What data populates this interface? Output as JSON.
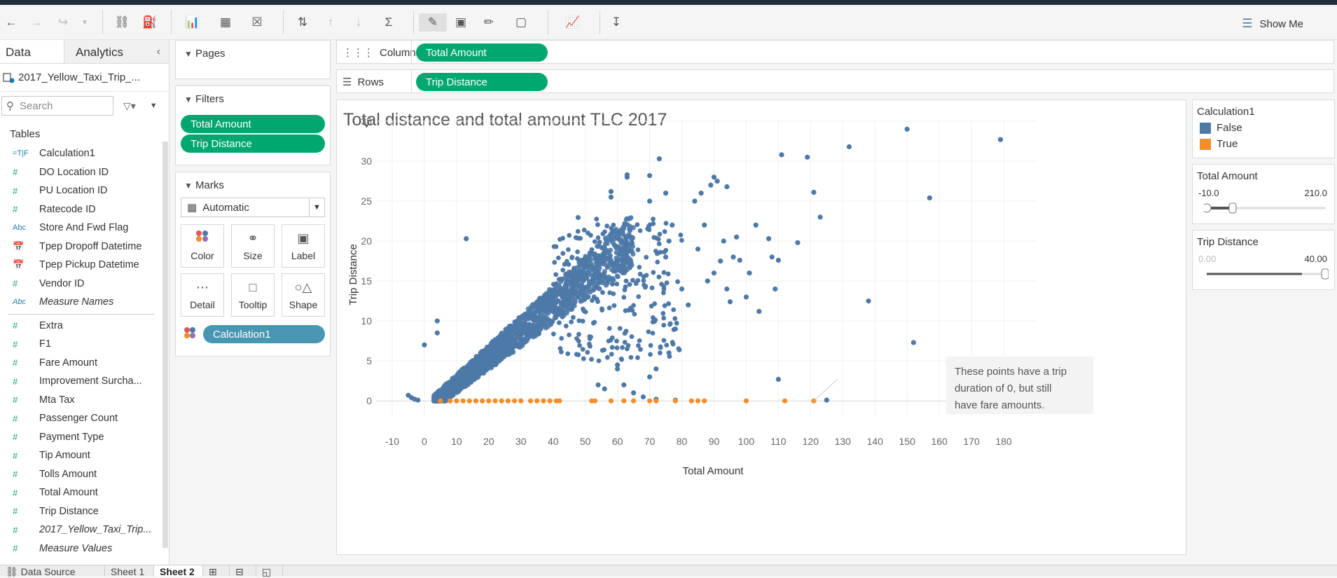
{
  "toolbar": {
    "show_me": "Show Me"
  },
  "data_pane": {
    "tabs": [
      "Data",
      "Analytics"
    ],
    "datasource": "2017_Yellow_Taxi_Trip_...",
    "search_placeholder": "Search",
    "tables_label": "Tables",
    "dimensions": [
      {
        "type": "=T|F",
        "name": "Calculation1"
      },
      {
        "type": "#",
        "name": "DO Location ID"
      },
      {
        "type": "#",
        "name": "PU Location ID"
      },
      {
        "type": "#",
        "name": "Ratecode ID"
      },
      {
        "type": "Abc",
        "name": "Store And Fwd Flag"
      },
      {
        "type": "date",
        "name": "Tpep Dropoff Datetime"
      },
      {
        "type": "date",
        "name": "Tpep Pickup Datetime"
      },
      {
        "type": "#",
        "name": "Vendor ID"
      },
      {
        "type": "Abc",
        "name": "Measure Names",
        "italic": true
      }
    ],
    "measures": [
      {
        "type": "#",
        "name": "Extra"
      },
      {
        "type": "#",
        "name": "F1"
      },
      {
        "type": "#",
        "name": "Fare Amount"
      },
      {
        "type": "#",
        "name": "Improvement Surcha..."
      },
      {
        "type": "#",
        "name": "Mta Tax"
      },
      {
        "type": "#",
        "name": "Passenger Count"
      },
      {
        "type": "#",
        "name": "Payment Type"
      },
      {
        "type": "#",
        "name": "Tip Amount"
      },
      {
        "type": "#",
        "name": "Tolls Amount"
      },
      {
        "type": "#",
        "name": "Total Amount"
      },
      {
        "type": "#",
        "name": "Trip Distance"
      },
      {
        "type": "#",
        "name": "2017_Yellow_Taxi_Trip...",
        "italic": true
      },
      {
        "type": "#",
        "name": "Measure Values",
        "italic": true
      }
    ]
  },
  "pages": {
    "title": "Pages"
  },
  "filters": {
    "title": "Filters",
    "pills": [
      "Total Amount",
      "Trip Distance"
    ]
  },
  "marks": {
    "title": "Marks",
    "mark_type": "Automatic",
    "buttons": [
      "Color",
      "Size",
      "Label",
      "Detail",
      "Tooltip",
      "Shape"
    ],
    "color_pill": "Calculation1"
  },
  "shelves": {
    "columns_label": "Columns",
    "columns_pill": "Total Amount",
    "rows_label": "Rows",
    "rows_pill": "Trip Distance"
  },
  "viz": {
    "title": "Total distance and total amount TLC 2017",
    "annotation": [
      "These points have a trip",
      "duration of 0, but still",
      "have fare amounts."
    ]
  },
  "legend": {
    "title": "Calculation1",
    "items": [
      {
        "label": "False",
        "color": "#4e79a7"
      },
      {
        "label": "True",
        "color": "#f28e2b"
      }
    ]
  },
  "filter_total_amount": {
    "title": "Total Amount",
    "min": "-10.0",
    "max": "210.0"
  },
  "filter_trip_distance": {
    "title": "Trip Distance",
    "min": "0.00",
    "max": "40.00"
  },
  "sheet_tabs": [
    "Data Source",
    "Sheet 1",
    "Sheet 2"
  ],
  "chart_data": {
    "type": "scatter",
    "title": "Total distance and total amount TLC 2017",
    "xlabel": "Total Amount",
    "ylabel": "Trip Distance",
    "xlim": [
      -15,
      190
    ],
    "ylim": [
      -2,
      35
    ],
    "xticks": [
      -10,
      0,
      10,
      20,
      30,
      40,
      50,
      60,
      70,
      80,
      90,
      100,
      110,
      120,
      130,
      140,
      150,
      160,
      170,
      180
    ],
    "yticks": [
      0,
      5,
      10,
      15,
      20,
      25,
      30,
      35
    ],
    "grid": true,
    "legend": "right-pane",
    "series": [
      {
        "name": "False",
        "color": "#4e79a7",
        "points": [
          [
            0,
            7
          ],
          [
            4,
            8.5
          ],
          [
            4,
            10
          ],
          [
            13,
            20.3
          ],
          [
            -5,
            0.7
          ],
          [
            -4,
            0.4
          ],
          [
            -3,
            0.2
          ],
          [
            -2,
            0.1
          ],
          [
            58,
            25.5
          ],
          [
            58,
            26.2
          ],
          [
            63,
            28
          ],
          [
            63,
            28.3
          ],
          [
            70,
            28.2
          ],
          [
            73,
            30.3
          ],
          [
            70,
            25
          ],
          [
            75,
            26
          ],
          [
            90,
            28
          ],
          [
            91,
            27.5
          ],
          [
            89,
            27
          ],
          [
            94,
            26.8
          ],
          [
            111,
            30.8
          ],
          [
            119,
            30.5
          ],
          [
            132,
            31.8
          ],
          [
            150,
            34
          ],
          [
            179,
            32.7
          ],
          [
            121,
            26.1
          ],
          [
            123,
            23
          ],
          [
            116,
            19.8
          ],
          [
            157,
            25.4
          ],
          [
            138,
            12.5
          ],
          [
            152,
            7.3
          ],
          [
            110,
            2.7
          ],
          [
            93,
            20
          ],
          [
            97,
            20.5
          ],
          [
            103,
            22
          ],
          [
            107,
            20.3
          ],
          [
            108,
            18
          ],
          [
            110,
            17.6
          ],
          [
            109,
            14
          ],
          [
            104,
            11.2
          ],
          [
            100,
            13
          ],
          [
            95,
            12.4
          ],
          [
            101,
            16
          ],
          [
            92,
            17.5
          ],
          [
            96,
            18
          ],
          [
            98,
            17.6
          ],
          [
            88,
            15
          ],
          [
            90,
            16
          ],
          [
            94,
            14
          ],
          [
            85,
            19
          ],
          [
            87,
            22
          ],
          [
            84,
            25
          ],
          [
            86,
            26
          ],
          [
            75,
            18
          ],
          [
            76,
            20
          ],
          [
            77,
            22
          ],
          [
            80,
            14
          ],
          [
            82,
            12
          ],
          [
            78,
            9
          ],
          [
            76,
            6
          ],
          [
            72,
            4
          ],
          [
            70,
            3
          ],
          [
            60,
            4.5
          ],
          [
            60,
            4
          ],
          [
            62,
            2
          ],
          [
            54,
            2
          ],
          [
            56,
            1.5
          ],
          [
            65,
            1
          ],
          [
            68,
            0.5
          ],
          [
            72,
            0.2
          ],
          [
            78,
            0.1
          ],
          [
            125,
            0.1
          ]
        ]
      },
      {
        "name": "True",
        "color": "#f28e2b",
        "points": [
          [
            5,
            0
          ],
          [
            8,
            0
          ],
          [
            10,
            0
          ],
          [
            12,
            0
          ],
          [
            14,
            0
          ],
          [
            16,
            0
          ],
          [
            18,
            0
          ],
          [
            20,
            0
          ],
          [
            22,
            0
          ],
          [
            24,
            0
          ],
          [
            26,
            0
          ],
          [
            28,
            0
          ],
          [
            30,
            0
          ],
          [
            33,
            0
          ],
          [
            35,
            0
          ],
          [
            37,
            0
          ],
          [
            39,
            0
          ],
          [
            41,
            0
          ],
          [
            42,
            0
          ],
          [
            52,
            0
          ],
          [
            53,
            0
          ],
          [
            58,
            0
          ],
          [
            62,
            0
          ],
          [
            65,
            0
          ],
          [
            70,
            0
          ],
          [
            72,
            0
          ],
          [
            78,
            0
          ],
          [
            83,
            0
          ],
          [
            85,
            0
          ],
          [
            87,
            0
          ],
          [
            100,
            0
          ],
          [
            112,
            0
          ],
          [
            121,
            0
          ]
        ]
      }
    ]
  }
}
